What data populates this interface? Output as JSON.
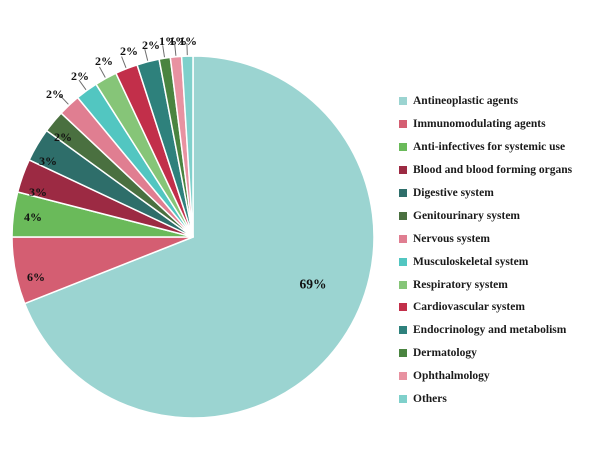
{
  "chart_data": {
    "type": "pie",
    "title": "",
    "legend_position": "right",
    "start_angle_deg": 0,
    "direction": "clockwise",
    "slices": [
      {
        "label": "Antineoplastic agents",
        "value_pct": 69,
        "display": "69%",
        "color": "#9bd4d1",
        "label_pos": [
          313,
          284
        ],
        "label_inside": true,
        "leader": false
      },
      {
        "label": "Immunomodulating agents",
        "value_pct": 6,
        "display": "6%",
        "color": "#d45e72",
        "label_pos": [
          36,
          277
        ],
        "label_inside": false,
        "leader": false
      },
      {
        "label": "Anti-infectives for systemic use",
        "value_pct": 4,
        "display": "4%",
        "color": "#6aba5a",
        "label_pos": [
          33,
          217
        ],
        "label_inside": false,
        "leader": false
      },
      {
        "label": "Blood and blood forming organs",
        "value_pct": 3,
        "display": "3%",
        "color": "#9c2a43",
        "label_pos": [
          38,
          192
        ],
        "label_inside": false,
        "leader": false
      },
      {
        "label": "Digestive system",
        "value_pct": 3,
        "display": "3%",
        "color": "#2e6e6a",
        "label_pos": [
          48,
          161
        ],
        "label_inside": false,
        "leader": false
      },
      {
        "label": "Genitourinary system",
        "value_pct": 2,
        "display": "2%",
        "color": "#4a7040",
        "label_pos": [
          63,
          137
        ],
        "label_inside": false,
        "leader": false
      },
      {
        "label": "Nervous system",
        "value_pct": 2,
        "display": "2%",
        "color": "#e07e91",
        "label_pos": [
          55,
          94
        ],
        "label_inside": false,
        "leader": true
      },
      {
        "label": "Musculoskeletal system",
        "value_pct": 2,
        "display": "2%",
        "color": "#52c6c1",
        "label_pos": [
          80,
          76
        ],
        "label_inside": false,
        "leader": true
      },
      {
        "label": "Respiratory system",
        "value_pct": 2,
        "display": "2%",
        "color": "#86c578",
        "label_pos": [
          104,
          61
        ],
        "label_inside": false,
        "leader": true
      },
      {
        "label": "Cardiovascular system",
        "value_pct": 2,
        "display": "2%",
        "color": "#c22f4a",
        "label_pos": [
          129,
          51
        ],
        "label_inside": false,
        "leader": true
      },
      {
        "label": "Endocrinology and metabolism",
        "value_pct": 2,
        "display": "2%",
        "color": "#2e817c",
        "label_pos": [
          151,
          45
        ],
        "label_inside": false,
        "leader": true
      },
      {
        "label": "Dermatology",
        "value_pct": 1,
        "display": "1%",
        "color": "#4a8440",
        "label_pos": [
          168,
          41
        ],
        "label_inside": false,
        "leader": true
      },
      {
        "label": "Ophthalmology",
        "value_pct": 1,
        "display": "1%",
        "color": "#e892a1",
        "label_pos": [
          178,
          41
        ],
        "label_inside": false,
        "leader": true
      },
      {
        "label": "Others",
        "value_pct": 1,
        "display": "1%",
        "color": "#7fd0cb",
        "label_pos": [
          188,
          41
        ],
        "label_inside": false,
        "leader": true
      }
    ]
  }
}
